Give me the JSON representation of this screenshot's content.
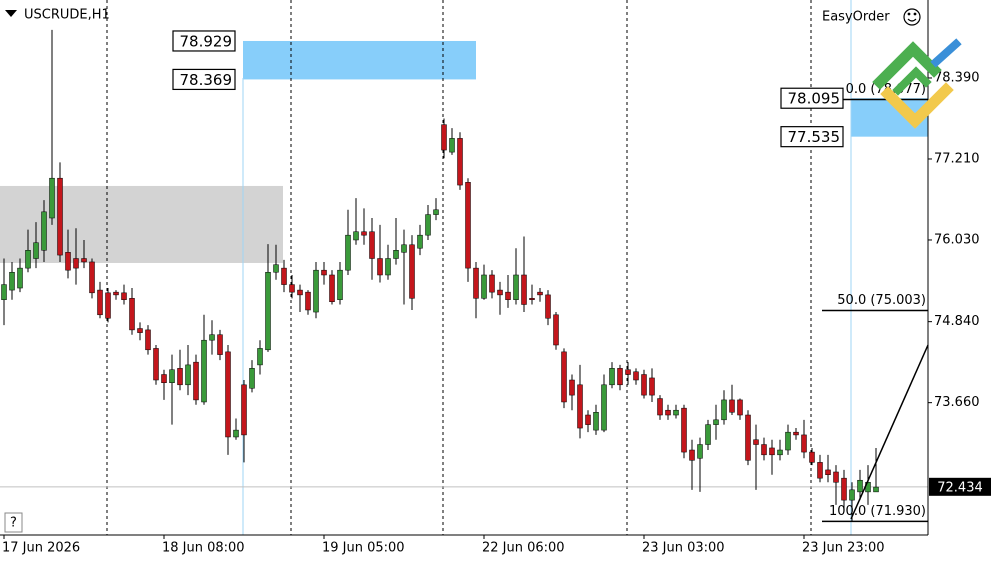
{
  "chart_data": {
    "type": "candlestick",
    "title": "USCRUDE,H1",
    "categories": [
      "17 Jun 2026",
      null,
      null,
      null,
      null,
      null,
      null,
      null,
      null,
      null,
      null,
      null,
      null,
      null,
      null,
      null,
      null,
      null,
      null,
      null,
      "18 Jun 08:00",
      null,
      null,
      null,
      null,
      null,
      null,
      null,
      null,
      null,
      null,
      null,
      null,
      null,
      null,
      null,
      null,
      null,
      null,
      null,
      "19 Jun 05:00",
      null,
      null,
      null,
      null,
      null,
      null,
      null,
      null,
      null,
      null,
      null,
      null,
      null,
      null,
      null,
      null,
      null,
      null,
      null,
      "22 Jun 06:00",
      null,
      null,
      null,
      null,
      null,
      null,
      null,
      null,
      null,
      null,
      null,
      null,
      null,
      null,
      null,
      null,
      null,
      null,
      null,
      "23 Jun 03:00",
      null,
      null,
      null,
      null,
      null,
      null,
      null,
      null,
      null,
      null,
      null,
      null,
      null,
      null,
      null,
      null,
      null,
      null,
      null,
      "23 Jun 23:00",
      null,
      null,
      null,
      null,
      null,
      null,
      null,
      null,
      null
    ],
    "open": [
      75.16,
      75.3,
      75.33,
      75.62,
      75.76,
      75.88,
      76.35,
      76.93,
      75.85,
      75.76,
      75.76,
      75.71,
      75.3,
      75.26,
      75.27,
      75.26,
      75.18,
      74.74,
      74.72,
      74.45,
      74.07,
      73.95,
      74.16,
      73.92,
      74.25,
      73.67,
      74.57,
      74.65,
      74.4,
      73.16,
      73.92,
      73.87,
      74.21,
      74.43,
      75.56,
      75.62,
      75.38,
      75.3,
      75.27,
      74.98,
      75.59,
      75.52,
      75.16,
      75.59,
      76.03,
      76.15,
      76.15,
      75.76,
      75.52,
      75.76,
      75.85,
      75.96,
      75.91,
      76.1,
      76.4,
      77.71,
      77.31,
      77.51,
      76.87,
      75.62,
      75.18,
      75.52,
      75.3,
      75.27,
      75.16,
      75.52,
      75.18,
      75.27,
      75.23,
      74.94,
      74.4,
      73.99,
      73.92,
      73.48,
      73.26,
      73.26,
      73.92,
      74.16,
      74.14,
      74.11,
      74.07,
      74.02,
      73.72,
      73.55,
      73.48,
      73.58,
      72.97,
      72.85,
      73.05,
      73.34,
      73.41,
      73.7,
      73.7,
      73.48,
      73.12,
      73.05,
      73.0,
      72.9,
      72.97,
      73.23,
      73.19,
      72.94,
      72.79,
      72.68,
      72.65,
      72.56,
      72.24,
      72.36,
      72.36,
      72.36
    ],
    "high": [
      75.76,
      75.71,
      75.76,
      76.18,
      76.29,
      76.61,
      79.09,
      77.16,
      76.18,
      76.2,
      76.03,
      75.76,
      75.42,
      75.33,
      75.3,
      75.38,
      75.33,
      74.83,
      74.79,
      74.5,
      74.14,
      74.36,
      74.43,
      74.5,
      74.36,
      74.94,
      74.86,
      74.72,
      74.5,
      73.43,
      73.99,
      74.28,
      74.57,
      75.97,
      75.96,
      75.74,
      75.52,
      75.38,
      75.3,
      75.71,
      75.71,
      75.59,
      75.71,
      76.47,
      76.64,
      76.49,
      76.35,
      76.25,
      75.96,
      76.35,
      76.18,
      76.1,
      76.25,
      76.54,
      76.64,
      77.8,
      77.66,
      77.6,
      76.93,
      75.71,
      75.67,
      75.59,
      75.42,
      75.52,
      75.91,
      76.08,
      75.38,
      75.33,
      75.3,
      74.98,
      74.45,
      74.07,
      74.21,
      73.55,
      73.63,
      74.07,
      74.25,
      74.21,
      74.25,
      74.16,
      74.14,
      74.16,
      73.77,
      73.63,
      73.63,
      73.63,
      73.12,
      73.15,
      73.41,
      73.63,
      73.84,
      73.92,
      73.72,
      73.55,
      73.34,
      73.15,
      73.12,
      73.12,
      73.34,
      73.29,
      73.41,
      73.0,
      72.9,
      72.9,
      72.75,
      72.68,
      72.5,
      72.68,
      72.75,
      73.0
    ],
    "low": [
      74.79,
      75.16,
      75.27,
      75.56,
      75.62,
      75.71,
      76.25,
      75.71,
      75.47,
      75.38,
      75.62,
      75.18,
      74.89,
      74.83,
      75.16,
      75.09,
      74.65,
      74.57,
      74.36,
      73.92,
      73.7,
      73.34,
      73.84,
      73.77,
      73.63,
      73.63,
      74.36,
      74.28,
      72.9,
      73.12,
      72.79,
      73.81,
      74.07,
      74.4,
      75.45,
      75.27,
      75.18,
      74.98,
      74.94,
      74.89,
      75.38,
      75.09,
      75.09,
      75.52,
      75.96,
      75.96,
      75.45,
      75.41,
      75.45,
      75.67,
      75.09,
      75.01,
      75.81,
      76.03,
      76.32,
      77.22,
      77.27,
      76.76,
      75.42,
      74.89,
      75.16,
      75.18,
      74.94,
      75.04,
      75.09,
      74.98,
      75.09,
      75.13,
      74.79,
      74.43,
      73.58,
      73.55,
      73.14,
      73.23,
      73.19,
      73.23,
      73.87,
      73.84,
      73.92,
      73.92,
      73.72,
      73.67,
      73.41,
      73.41,
      73.43,
      72.85,
      72.39,
      72.36,
      72.97,
      73.12,
      73.34,
      73.48,
      73.41,
      72.75,
      72.39,
      72.82,
      72.61,
      72.82,
      72.9,
      73.12,
      72.85,
      72.75,
      72.5,
      72.5,
      72.17,
      72.07,
      71.93,
      72.24,
      72.17,
      72.36
    ],
    "close": [
      75.38,
      75.56,
      75.62,
      75.88,
      75.99,
      76.44,
      76.93,
      75.81,
      75.59,
      75.62,
      75.71,
      75.26,
      74.94,
      74.89,
      75.23,
      75.16,
      74.72,
      74.68,
      74.43,
      73.99,
      73.95,
      74.14,
      73.92,
      74.21,
      73.7,
      74.57,
      74.65,
      74.36,
      73.16,
      73.26,
      73.19,
      74.16,
      74.45,
      75.56,
      75.67,
      75.38,
      75.27,
      75.23,
      75.01,
      75.59,
      75.52,
      75.13,
      75.59,
      76.1,
      76.15,
      76.1,
      75.76,
      75.52,
      75.76,
      75.88,
      75.96,
      75.18,
      76.1,
      76.4,
      76.47,
      77.34,
      77.51,
      76.83,
      75.62,
      75.18,
      75.52,
      75.27,
      75.23,
      75.16,
      75.52,
      75.09,
      75.16,
      75.23,
      74.89,
      74.5,
      73.67,
      73.77,
      73.29,
      73.34,
      73.52,
      73.92,
      74.16,
      73.92,
      74.07,
      73.99,
      73.77,
      73.77,
      73.48,
      73.48,
      73.55,
      72.94,
      72.82,
      73.05,
      73.34,
      73.41,
      73.7,
      73.52,
      73.48,
      72.82,
      73.05,
      72.9,
      72.9,
      72.97,
      73.23,
      73.19,
      72.94,
      72.79,
      72.56,
      72.61,
      72.5,
      72.24,
      72.39,
      72.53,
      72.5,
      72.43
    ],
    "up_color": "#3a9a3a",
    "down_color": "#c4161c",
    "wick_color": "#000000",
    "ylim": [
      71.732,
      79.526
    ],
    "yticks": [
      {
        "value": 73.66,
        "label": "73.660"
      },
      {
        "value": 74.84,
        "label": "74.840"
      },
      {
        "value": 76.03,
        "label": "76.030"
      },
      {
        "value": 77.21,
        "label": "77.210"
      },
      {
        "value": 78.39,
        "label": "78.390"
      }
    ],
    "grid": false,
    "current_price": 72.434,
    "zones": [
      {
        "top": 78.929,
        "bottom": 78.369,
        "color": "#87cefa",
        "labels": true
      },
      {
        "top": 78.095,
        "bottom": 77.535,
        "color": "#87cefa",
        "labels": true
      },
      {
        "top": 76.817,
        "bottom": 75.695,
        "color": "#d3d3d3",
        "labels": false
      }
    ],
    "fibonacci": [
      {
        "label": "0.0 (78.077)",
        "value": 78.077
      },
      {
        "label": "50.0 (75.003)",
        "value": 75.003
      },
      {
        "label": "100.0 (71.930)",
        "value": 71.93
      }
    ]
  },
  "toolbar": {
    "brand": "EasyOrder",
    "help": "?"
  }
}
